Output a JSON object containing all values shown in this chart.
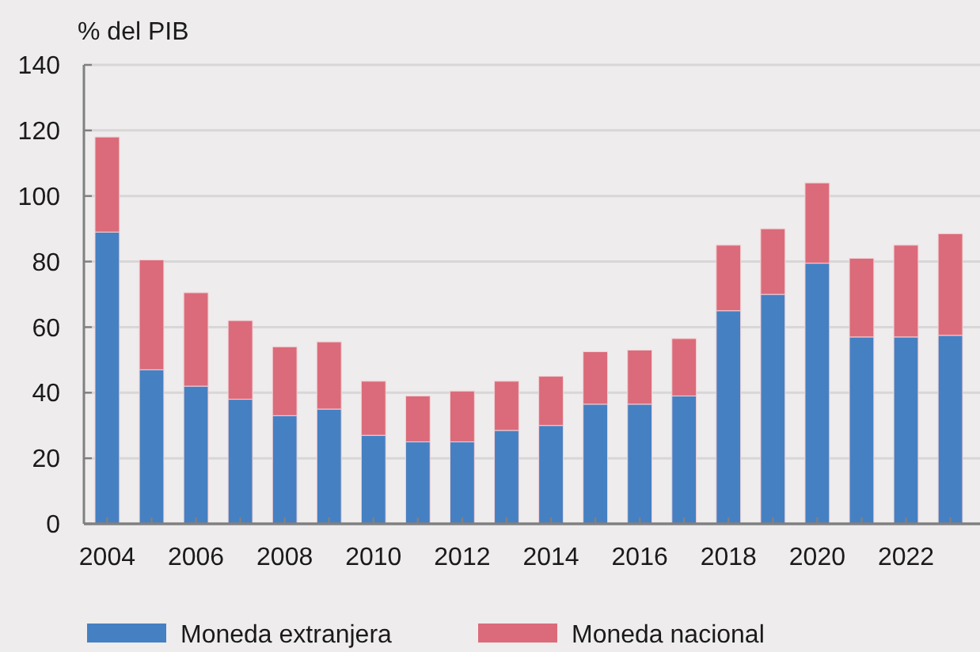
{
  "chart_data": {
    "type": "bar",
    "stacked": true,
    "ylabel": "% del PIB",
    "categories": [
      "2004",
      null,
      "2006",
      null,
      "2008",
      null,
      "2010",
      null,
      "2012",
      null,
      "2014",
      null,
      "2016",
      null,
      "2018",
      null,
      "2020",
      null,
      "2022",
      null
    ],
    "series": [
      {
        "name": "Moneda extranjera",
        "color": "#4580c2",
        "values": [
          89,
          47,
          42,
          38,
          33,
          35,
          27,
          25,
          25,
          28.5,
          30,
          36.5,
          36.5,
          39,
          65,
          70,
          79.5,
          57,
          57,
          57.5
        ]
      },
      {
        "name": "Moneda nacional",
        "color": "#db6b7a",
        "values": [
          29,
          33.5,
          28.5,
          24,
          21,
          20.5,
          16.5,
          14,
          15.5,
          15,
          15,
          16,
          16.5,
          17.5,
          20,
          20,
          24.5,
          24,
          28,
          31
        ]
      }
    ],
    "ylim": [
      0,
      140
    ],
    "yticks": [
      0,
      20,
      40,
      60,
      80,
      100,
      120,
      140
    ],
    "grid": "y",
    "legend": "bottom"
  }
}
